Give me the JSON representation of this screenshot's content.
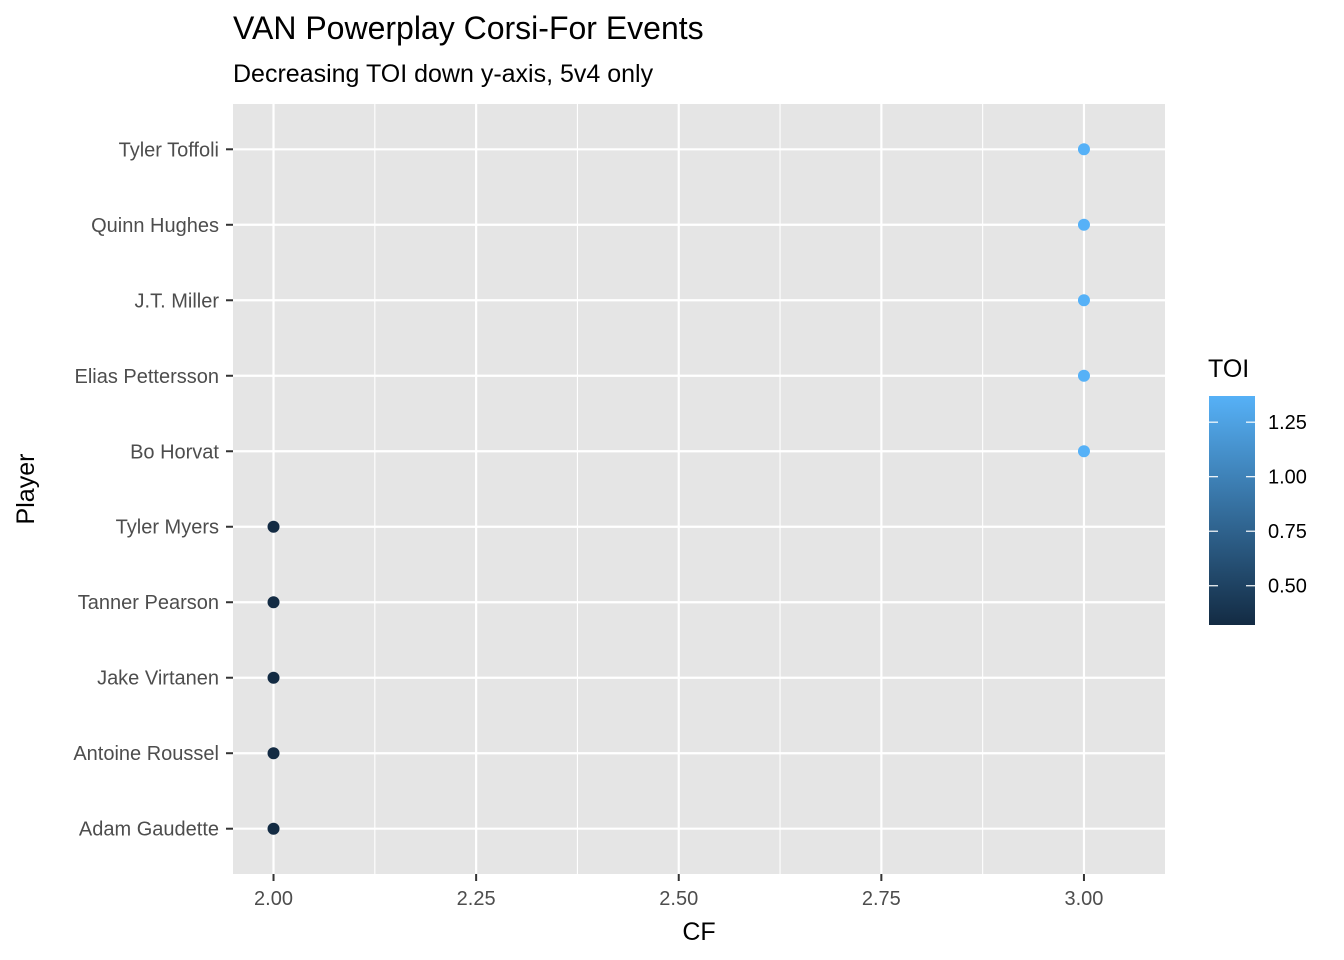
{
  "chart_data": {
    "type": "scatter",
    "title": "VAN Powerplay Corsi-For Events",
    "subtitle": "Decreasing TOI down y-axis, 5v4 only",
    "xlabel": "CF",
    "ylabel": "Player",
    "xlim": [
      1.95,
      3.1
    ],
    "x_ticks": [
      2.0,
      2.25,
      2.5,
      2.75,
      3.0
    ],
    "x_tick_labels": [
      "2.00",
      "2.25",
      "2.50",
      "2.75",
      "3.00"
    ],
    "categories": [
      "Tyler Toffoli",
      "Quinn Hughes",
      "J.T. Miller",
      "Elias Pettersson",
      "Bo Horvat",
      "Tyler Myers",
      "Tanner Pearson",
      "Jake Virtanen",
      "Antoine Roussel",
      "Adam Gaudette"
    ],
    "points": [
      {
        "player": "Tyler Toffoli",
        "cf": 3,
        "toi": 1.37
      },
      {
        "player": "Quinn Hughes",
        "cf": 3,
        "toi": 1.37
      },
      {
        "player": "J.T. Miller",
        "cf": 3,
        "toi": 1.37
      },
      {
        "player": "Elias Pettersson",
        "cf": 3,
        "toi": 1.37
      },
      {
        "player": "Bo Horvat",
        "cf": 3,
        "toi": 1.37
      },
      {
        "player": "Tyler Myers",
        "cf": 2,
        "toi": 0.32
      },
      {
        "player": "Tanner Pearson",
        "cf": 2,
        "toi": 0.32
      },
      {
        "player": "Jake Virtanen",
        "cf": 2,
        "toi": 0.32
      },
      {
        "player": "Antoine Roussel",
        "cf": 2,
        "toi": 0.32
      },
      {
        "player": "Adam Gaudette",
        "cf": 2,
        "toi": 0.32
      }
    ],
    "color_legend": {
      "title": "TOI",
      "range": [
        0.32,
        1.37
      ],
      "ticks": [
        0.5,
        0.75,
        1.0,
        1.25
      ],
      "tick_labels": [
        "0.50",
        "0.75",
        "1.00",
        "1.25"
      ],
      "low_color": "#132b43",
      "high_color": "#56b1f7"
    },
    "grid": true,
    "legend_position": "right",
    "panel_color": "#e5e5e5",
    "grid_color": "#ffffff"
  }
}
